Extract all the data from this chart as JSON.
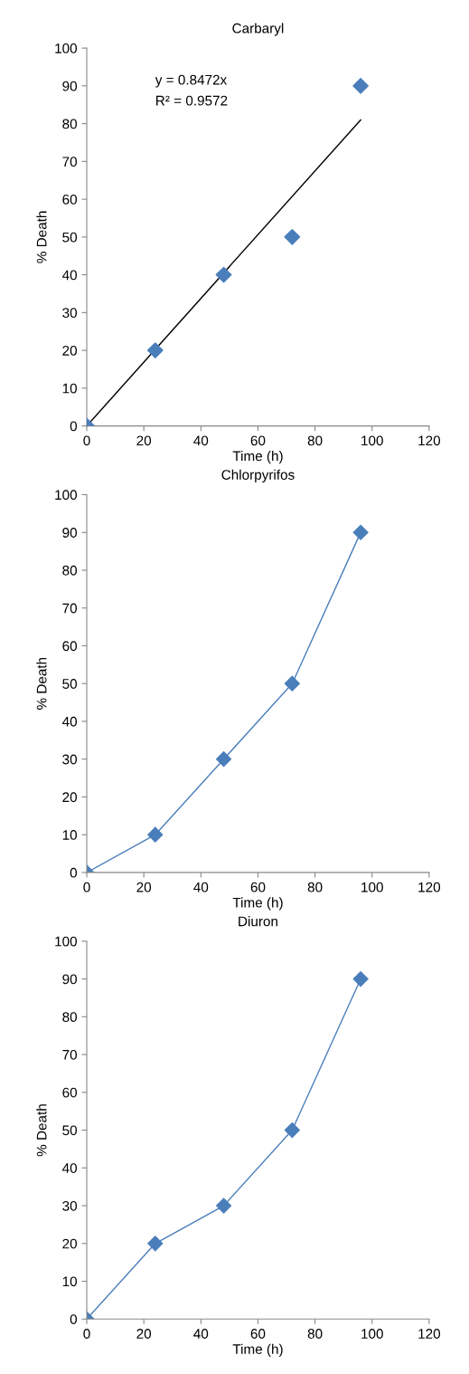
{
  "chart_data": [
    {
      "type": "scatter",
      "title": "Carbaryl",
      "xlabel": "Time (h)",
      "ylabel": "% Death",
      "marker": "diamond",
      "grid": false,
      "legend": false,
      "x": [
        0,
        24,
        48,
        72,
        96
      ],
      "series": [
        {
          "color": "#4a7ebb",
          "values": [
            0,
            20,
            40,
            50,
            90
          ]
        },
        {
          "type": "line",
          "color": "#000000",
          "marker": "none",
          "x": [
            0,
            96
          ],
          "values": [
            0,
            81
          ]
        }
      ],
      "annotations": [
        "y = 0.8472x",
        "R² = 0.9572"
      ],
      "xlim": [
        0,
        120
      ],
      "xticks": [
        0,
        20,
        40,
        60,
        80,
        100,
        120
      ],
      "ylim": [
        0,
        100
      ],
      "yticks": [
        0,
        10,
        20,
        30,
        40,
        50,
        60,
        70,
        80,
        90,
        100
      ]
    },
    {
      "type": "line",
      "title": "Chlorpyrifos",
      "xlabel": "Time (h)",
      "ylabel": "% Death",
      "marker": "diamond",
      "grid": false,
      "legend": false,
      "x": [
        0,
        24,
        48,
        72,
        96
      ],
      "series": [
        {
          "color": "#4a7ebb",
          "values": [
            0,
            10,
            30,
            50,
            90
          ]
        }
      ],
      "xlim": [
        0,
        120
      ],
      "xticks": [
        0,
        20,
        40,
        60,
        80,
        100,
        120
      ],
      "ylim": [
        0,
        100
      ],
      "yticks": [
        0,
        10,
        20,
        30,
        40,
        50,
        60,
        70,
        80,
        90,
        100
      ]
    },
    {
      "type": "line",
      "title": "Diuron",
      "xlabel": "Time (h)",
      "ylabel": "% Death",
      "marker": "diamond",
      "grid": false,
      "legend": false,
      "x": [
        0,
        24,
        48,
        72,
        96
      ],
      "series": [
        {
          "color": "#4a7ebb",
          "values": [
            0,
            20,
            30,
            50,
            90
          ]
        }
      ],
      "xlim": [
        0,
        120
      ],
      "xticks": [
        0,
        20,
        40,
        60,
        80,
        100,
        120
      ],
      "ylim": [
        0,
        100
      ],
      "yticks": [
        0,
        10,
        20,
        30,
        40,
        50,
        60,
        70,
        80,
        90,
        100
      ]
    }
  ]
}
